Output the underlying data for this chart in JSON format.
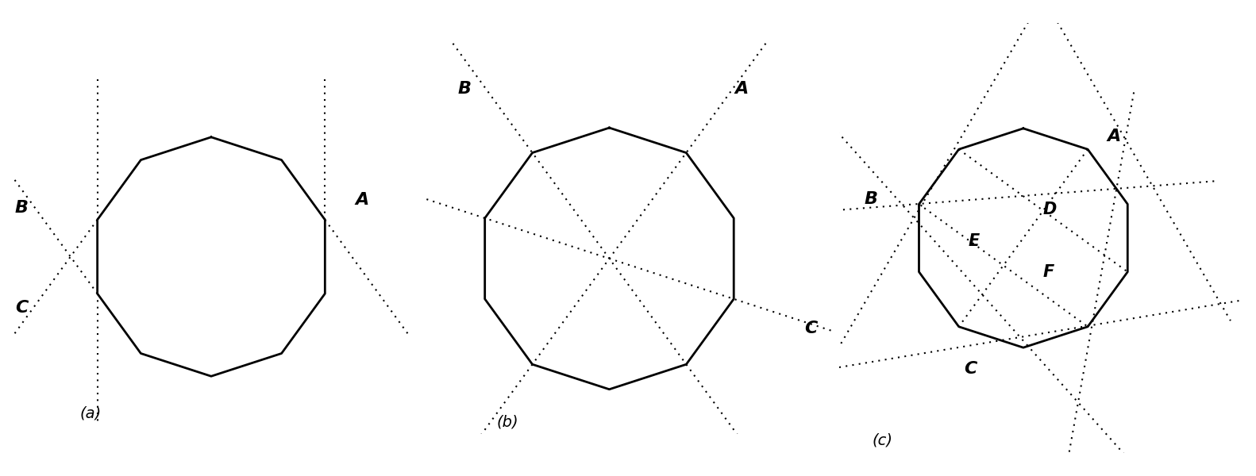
{
  "bg_color": "#ffffff",
  "n_sides": 10,
  "label_fontsize": 16,
  "caption_fontsize": 14,
  "line_width": 2.0,
  "dot_style": {
    "linestyle": "dotted",
    "linewidth": 1.5,
    "color": "black",
    "dashes": [
      1,
      3
    ]
  },
  "panels": [
    "(a)",
    "(b)",
    "(c)"
  ]
}
